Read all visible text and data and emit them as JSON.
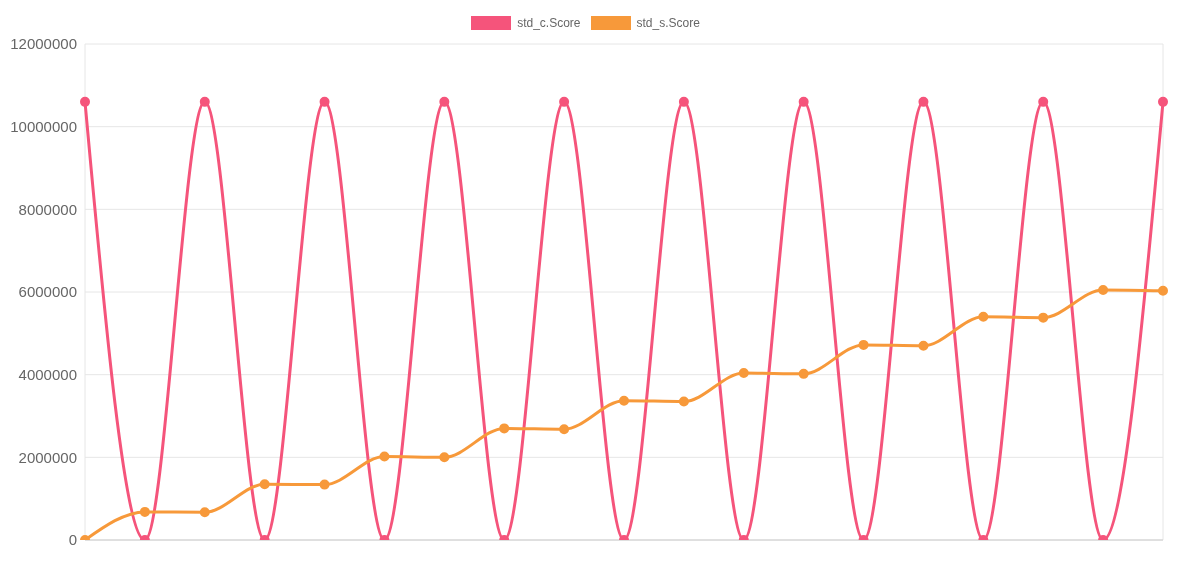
{
  "chart_data": {
    "type": "line",
    "categories": [
      null,
      null,
      null,
      null,
      null,
      null,
      null,
      null,
      null,
      null,
      null,
      null,
      null,
      null,
      null,
      null,
      null,
      null,
      null
    ],
    "series": [
      {
        "name": "std_c.Score",
        "color": "#f5547b",
        "values": [
          10600000,
          0,
          10600000,
          0,
          10600000,
          0,
          10600000,
          0,
          10600000,
          0,
          10600000,
          0,
          10600000,
          0,
          10600000,
          0,
          10600000,
          0,
          10600000
        ]
      },
      {
        "name": "std_s.Score",
        "color": "#f7993a",
        "values": [
          0,
          680000,
          670000,
          1350000,
          1340000,
          2020000,
          2000000,
          2700000,
          2680000,
          3370000,
          3350000,
          4040000,
          4020000,
          4720000,
          4700000,
          5400000,
          5380000,
          6050000,
          6030000
        ]
      }
    ],
    "ylim": [
      0,
      12000000
    ],
    "yticks": [
      0,
      2000000,
      4000000,
      6000000,
      8000000,
      10000000,
      12000000
    ],
    "grid": true,
    "legend": "top",
    "marker": "circle",
    "line_style": "solid",
    "tick_labels": "y"
  }
}
